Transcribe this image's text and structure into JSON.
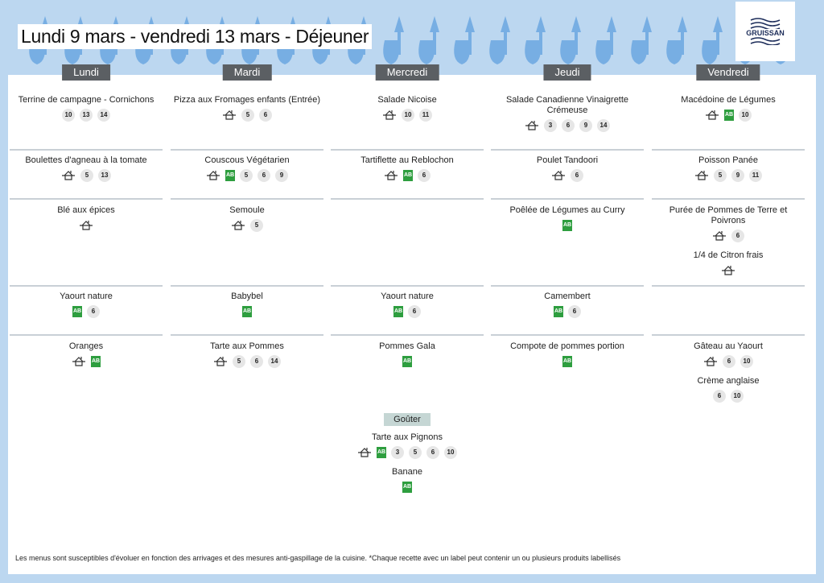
{
  "title": "Lundi 9 mars - vendredi 13 mars  - Déjeuner",
  "logo": {
    "text": "GRUISSAN"
  },
  "days": [
    {
      "label": "Lundi",
      "rows": [
        [
          {
            "name": "Terrine de campagne - Cornichons",
            "badges": [
              10,
              13,
              14
            ]
          }
        ],
        [
          {
            "name": "Boulettes d'agneau à la tomate",
            "badges": [
              "house",
              5,
              13
            ]
          }
        ],
        [
          {
            "name": "Blé aux épices",
            "badges": [
              "house"
            ]
          }
        ],
        [
          {
            "name": "Yaourt nature",
            "badges": [
              "ab",
              6
            ]
          }
        ],
        [
          {
            "name": "Oranges",
            "badges": [
              "house",
              "ab"
            ]
          }
        ]
      ]
    },
    {
      "label": "Mardi",
      "rows": [
        [
          {
            "name": "Pizza aux Fromages enfants (Entrée)",
            "badges": [
              "house",
              5,
              6
            ]
          }
        ],
        [
          {
            "name": "Couscous Végétarien",
            "badges": [
              "house",
              "ab",
              5,
              6,
              9
            ]
          }
        ],
        [
          {
            "name": "Semoule",
            "badges": [
              "house",
              5
            ]
          }
        ],
        [
          {
            "name": "Babybel",
            "badges": [
              "ab"
            ]
          }
        ],
        [
          {
            "name": "Tarte aux Pommes",
            "badges": [
              "house",
              5,
              6,
              14
            ]
          }
        ]
      ]
    },
    {
      "label": "Mercredi",
      "rows": [
        [
          {
            "name": "Salade Nicoise",
            "badges": [
              "house",
              10,
              11
            ]
          }
        ],
        [
          {
            "name": "Tartiflette au Reblochon",
            "badges": [
              "house",
              "ab",
              6
            ]
          }
        ],
        [],
        [
          {
            "name": "Yaourt nature",
            "badges": [
              "ab",
              6
            ]
          }
        ],
        [
          {
            "name": "Pommes Gala",
            "badges": [
              "ab"
            ]
          }
        ]
      ]
    },
    {
      "label": "Jeudi",
      "rows": [
        [
          {
            "name": "Salade Canadienne Vinaigrette Crémeuse",
            "badges": [
              "house",
              3,
              6,
              9,
              14
            ]
          }
        ],
        [
          {
            "name": "Poulet Tandoori",
            "badges": [
              "house",
              6
            ]
          }
        ],
        [
          {
            "name": "Poêlée de Légumes au Curry",
            "badges": [
              "ab"
            ]
          }
        ],
        [
          {
            "name": "Camembert",
            "badges": [
              "ab",
              6
            ]
          }
        ],
        [
          {
            "name": "Compote de pommes portion",
            "badges": [
              "ab"
            ]
          }
        ]
      ]
    },
    {
      "label": "Vendredi",
      "rows": [
        [
          {
            "name": "Macédoine de Légumes",
            "badges": [
              "house",
              "ab",
              10
            ]
          }
        ],
        [
          {
            "name": "Poisson Panée",
            "badges": [
              "house",
              5,
              9,
              11
            ]
          }
        ],
        [
          {
            "name": "Purée de Pommes de Terre et Poivrons",
            "badges": [
              "house",
              6
            ]
          },
          {
            "name": "1/4 de Citron frais",
            "badges": [
              "house"
            ]
          }
        ],
        [],
        [
          {
            "name": "Gâteau au Yaourt",
            "badges": [
              "house",
              6,
              10
            ]
          },
          {
            "name": "Crème anglaise",
            "badges": [
              6,
              10
            ]
          }
        ]
      ]
    }
  ],
  "gouter": {
    "label": "Goûter",
    "dishes": [
      {
        "name": "Tarte aux Pignons",
        "badges": [
          "house",
          "ab",
          3,
          5,
          6,
          10
        ]
      },
      {
        "name": "Banane",
        "badges": [
          "ab"
        ]
      }
    ]
  },
  "footer": "Les menus sont susceptibles d'évoluer en fonction des arrivages et des mesures anti-gaspillage de la cuisine. *Chaque recette avec un label peut contenir un ou plusieurs produits labellisés"
}
